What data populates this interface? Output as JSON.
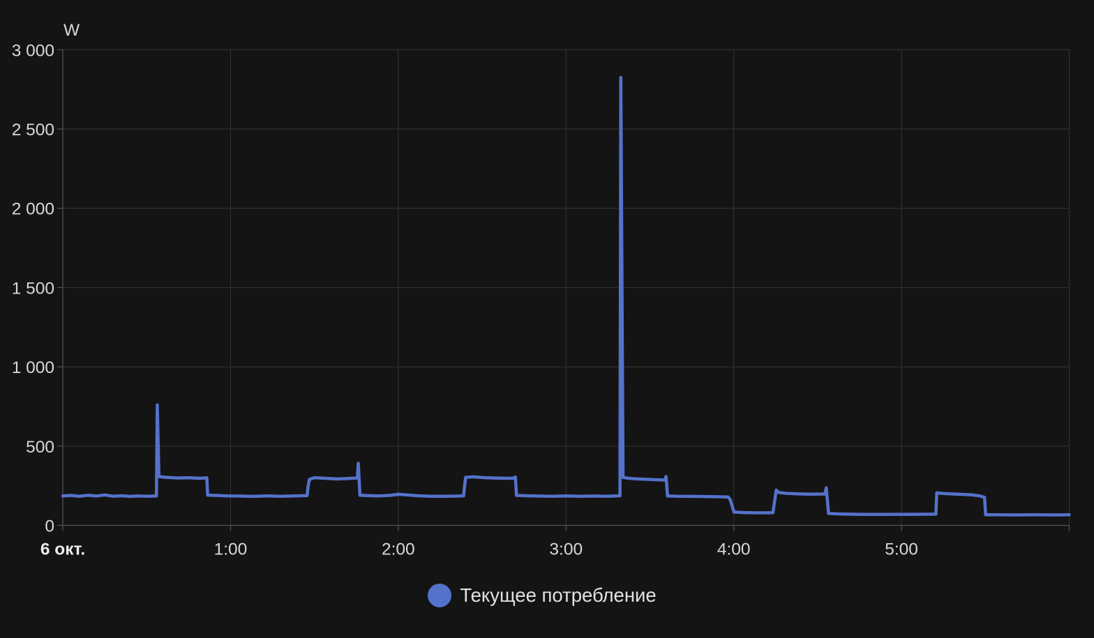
{
  "chart": {
    "unit": "W",
    "legend": {
      "label": "Текущее потребление"
    },
    "colors": {
      "background": "#141414",
      "grid_line": "#343434",
      "axis_line": "#555555",
      "tick_text": "#d9d9d9",
      "date_text": "#ececec",
      "series_line": "#5572cb",
      "legend_text": "#e2e2e2"
    }
  },
  "chart_data": {
    "type": "line",
    "title": "",
    "xlabel": "",
    "ylabel": "W",
    "ylim": [
      0,
      3000
    ],
    "x_range_minutes": 360,
    "grid": true,
    "legend_position": "bottom-center",
    "y_ticks": [
      {
        "value": 0,
        "label": "0"
      },
      {
        "value": 500,
        "label": "500"
      },
      {
        "value": 1000,
        "label": "1 000"
      },
      {
        "value": 1500,
        "label": "1 500"
      },
      {
        "value": 2000,
        "label": "2 000"
      },
      {
        "value": 2500,
        "label": "2 500"
      },
      {
        "value": 3000,
        "label": "3 000"
      }
    ],
    "x_ticks": [
      {
        "minutes": 0,
        "label": "6 окт.",
        "bold": true
      },
      {
        "minutes": 60,
        "label": "1:00",
        "bold": false
      },
      {
        "minutes": 120,
        "label": "2:00",
        "bold": false
      },
      {
        "minutes": 180,
        "label": "3:00",
        "bold": false
      },
      {
        "minutes": 240,
        "label": "4:00",
        "bold": false
      },
      {
        "minutes": 300,
        "label": "5:00",
        "bold": false
      },
      {
        "minutes": 360,
        "label": "",
        "bold": false
      }
    ],
    "series": [
      {
        "name": "Текущее потребление",
        "unit": "W",
        "color": "#5572cb",
        "points_min_watts": [
          [
            0,
            186
          ],
          [
            3,
            189
          ],
          [
            6,
            184
          ],
          [
            9,
            190
          ],
          [
            12,
            185
          ],
          [
            15,
            192
          ],
          [
            18,
            184
          ],
          [
            21,
            187
          ],
          [
            24,
            183
          ],
          [
            27,
            186
          ],
          [
            30,
            184
          ],
          [
            33.5,
            186
          ],
          [
            33.8,
            760
          ],
          [
            34.4,
            308
          ],
          [
            37,
            303
          ],
          [
            41,
            299
          ],
          [
            45,
            301
          ],
          [
            49,
            297
          ],
          [
            51.5,
            300
          ],
          [
            51.8,
            191
          ],
          [
            55,
            189
          ],
          [
            59,
            186
          ],
          [
            63,
            185
          ],
          [
            68,
            183
          ],
          [
            73,
            186
          ],
          [
            78,
            184
          ],
          [
            83,
            186
          ],
          [
            87.4,
            188
          ],
          [
            87.7,
            240
          ],
          [
            88.2,
            290
          ],
          [
            90,
            301
          ],
          [
            94,
            297
          ],
          [
            98,
            293
          ],
          [
            102,
            296
          ],
          [
            105.4,
            299
          ],
          [
            105.7,
            392
          ],
          [
            106.3,
            190
          ],
          [
            109,
            188
          ],
          [
            113,
            186
          ],
          [
            117,
            189
          ],
          [
            120,
            196
          ],
          [
            123,
            192
          ],
          [
            127,
            187
          ],
          [
            132,
            184
          ],
          [
            137,
            184
          ],
          [
            142,
            185
          ],
          [
            143.4,
            187
          ],
          [
            143.6,
            230
          ],
          [
            144.1,
            303
          ],
          [
            147,
            306
          ],
          [
            151,
            301
          ],
          [
            156,
            298
          ],
          [
            161,
            297
          ],
          [
            161.9,
            305
          ],
          [
            162.3,
            189
          ],
          [
            166,
            187
          ],
          [
            170,
            185
          ],
          [
            175,
            184
          ],
          [
            180,
            186
          ],
          [
            185,
            184
          ],
          [
            190,
            185
          ],
          [
            195,
            184
          ],
          [
            199.3,
            187
          ],
          [
            199.6,
            2825
          ],
          [
            200.4,
            302
          ],
          [
            203,
            296
          ],
          [
            207,
            292
          ],
          [
            211,
            289
          ],
          [
            215.3,
            286
          ],
          [
            215.8,
            308
          ],
          [
            216.3,
            186
          ],
          [
            220,
            184
          ],
          [
            226,
            183
          ],
          [
            232,
            181
          ],
          [
            238,
            179
          ],
          [
            238.7,
            163
          ],
          [
            240.1,
            84
          ],
          [
            244,
            81
          ],
          [
            249,
            79
          ],
          [
            254,
            80
          ],
          [
            255.2,
            223
          ],
          [
            256.1,
            207
          ],
          [
            259,
            202
          ],
          [
            263,
            199
          ],
          [
            267,
            197
          ],
          [
            272.6,
            198
          ],
          [
            273.1,
            237
          ],
          [
            273.9,
            75
          ],
          [
            278,
            72
          ],
          [
            284,
            70
          ],
          [
            291,
            69
          ],
          [
            298,
            70
          ],
          [
            305,
            70
          ],
          [
            312.3,
            71
          ],
          [
            312.6,
            205
          ],
          [
            315,
            201
          ],
          [
            320,
            197
          ],
          [
            325,
            193
          ],
          [
            328,
            186
          ],
          [
            329.7,
            177
          ],
          [
            330.1,
            67
          ],
          [
            334,
            67
          ],
          [
            340,
            66
          ],
          [
            347,
            67
          ],
          [
            354,
            66
          ],
          [
            360,
            67
          ]
        ]
      }
    ]
  }
}
